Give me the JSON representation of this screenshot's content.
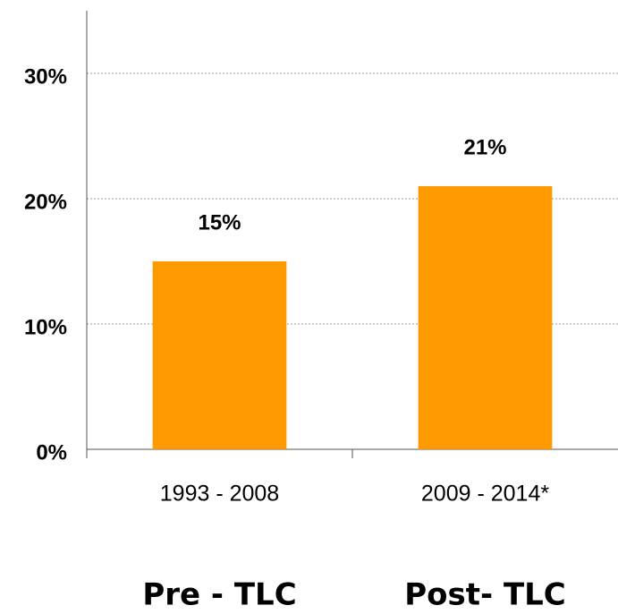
{
  "chart_data": {
    "type": "bar",
    "categories": [
      "1993 - 2008",
      "2009 - 2014*"
    ],
    "group_labels": [
      "Pre - TLC",
      "Post- TLC"
    ],
    "values": [
      15,
      21
    ],
    "value_labels": [
      "15%",
      "21%"
    ],
    "color": "#ff9900",
    "ylim": [
      0,
      35
    ],
    "yticks": [
      {
        "value": 0,
        "label": "0%"
      },
      {
        "value": 10,
        "label": "10%"
      },
      {
        "value": 20,
        "label": "20%"
      },
      {
        "value": 30,
        "label": "30%"
      }
    ],
    "grid": true
  }
}
